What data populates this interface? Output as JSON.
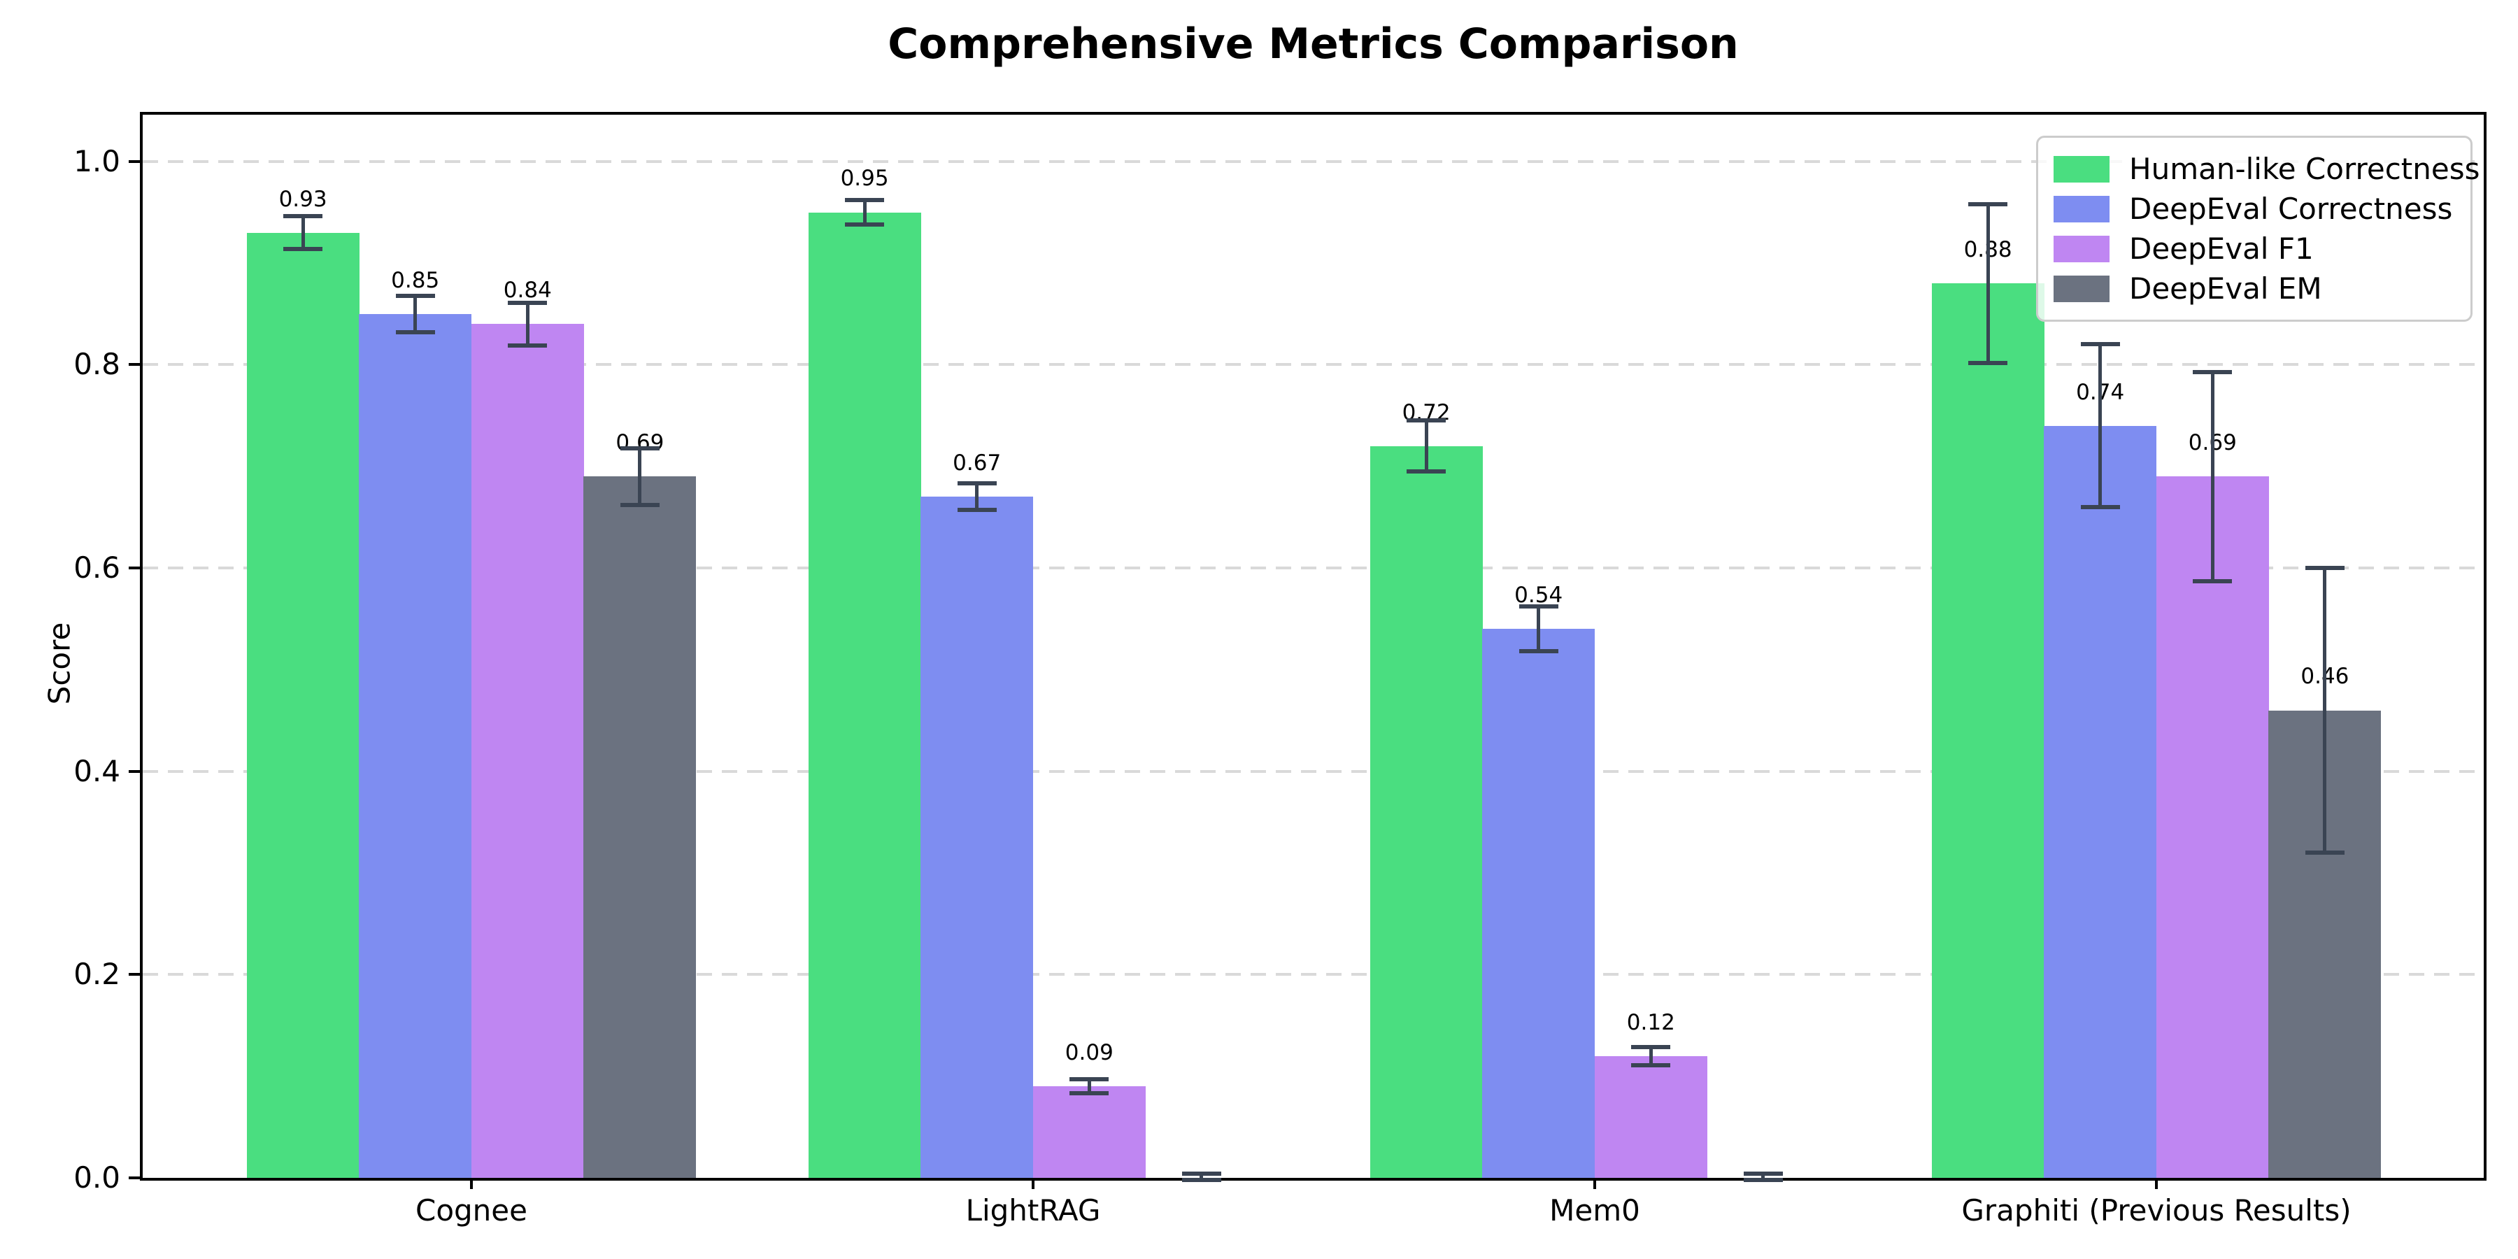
{
  "title": "Comprehensive Metrics Comparison",
  "chart_data": {
    "type": "bar",
    "title": "Comprehensive Metrics Comparison",
    "xlabel": "",
    "ylabel": "Score",
    "categories": [
      "Cognee",
      "LightRAG",
      "Mem0",
      "Graphiti (Previous Results)"
    ],
    "yticks": [
      0.0,
      0.2,
      0.4,
      0.6,
      0.8,
      1.0
    ],
    "ytick_labels": [
      "0.0",
      "0.2",
      "0.4",
      "0.6",
      "0.8",
      "1.0"
    ],
    "ylim": [
      0,
      1.046
    ],
    "grid": "horizontal-dashed",
    "legend_position": "upper-right",
    "error_bar_color": "#3a4453",
    "grid_color": "#d9d9d9",
    "axis_color": "#000000",
    "series": [
      {
        "name": "Human-like Correctness",
        "color": "#4ade80",
        "values": [
          0.93,
          0.95,
          0.72,
          0.88
        ],
        "errors": [
          0.016,
          0.012,
          0.025,
          0.078
        ],
        "labels": [
          "0.93",
          "0.95",
          "0.72",
          "0.88"
        ]
      },
      {
        "name": "DeepEval Correctness",
        "color": "#7e8df1",
        "values": [
          0.85,
          0.67,
          0.54,
          0.74
        ],
        "errors": [
          0.018,
          0.013,
          0.022,
          0.08
        ],
        "labels": [
          "0.85",
          "0.67",
          "0.54",
          "0.74"
        ]
      },
      {
        "name": "DeepEval F1",
        "color": "#bf86f2",
        "values": [
          0.84,
          0.09,
          0.12,
          0.69
        ],
        "errors": [
          0.021,
          0.007,
          0.009,
          0.103
        ],
        "labels": [
          "0.84",
          "0.09",
          "0.12",
          "0.69"
        ]
      },
      {
        "name": "DeepEval EM",
        "color": "#6b7280",
        "values": [
          0.69,
          0.0,
          0.0,
          0.46
        ],
        "errors": [
          0.028,
          0.004,
          0.004,
          0.14
        ],
        "labels": [
          "0.69",
          null,
          null,
          "0.46"
        ]
      }
    ]
  }
}
